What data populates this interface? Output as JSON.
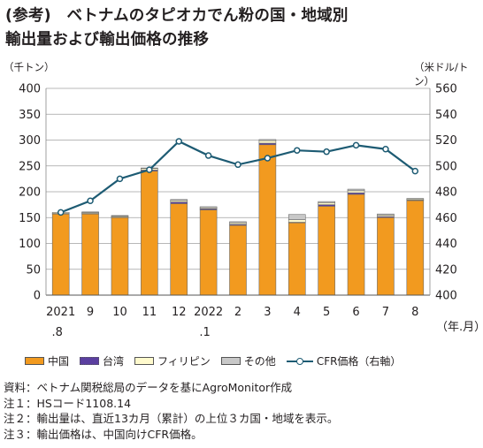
{
  "title": {
    "line1": "(参考)　ベトナムのタピオカでん粉の国・地域別",
    "line2": "輸出量および輸出価格の推移"
  },
  "units": {
    "left": "（千トン）",
    "right": "（米ドル/トン）"
  },
  "x_unit_label": "（年.月）",
  "legend": {
    "china": "中国",
    "taiwan": "台湾",
    "philippines": "フィリピン",
    "other": "その他",
    "cfr": "CFR価格（右軸）"
  },
  "colors": {
    "china": "#f29a1f",
    "taiwan": "#5b3fa0",
    "philippines": "#fffacd",
    "other": "#c8c8c8",
    "cfr_line": "#1d5b73",
    "grid": "#a0a0a0"
  },
  "notes": [
    "資料：ベトナム関税総局のデータを基にAgroMonitor作成",
    "注１：HSコード1108.14",
    "注２：輸出量は、直近13カ月（累計）の上位３カ国・地域を表示。",
    "注３：輸出価格は、中国向けCFR価格。"
  ],
  "chart_data": {
    "type": "bar",
    "stacked": true,
    "categories": [
      [
        "2021",
        ".8"
      ],
      [
        "9",
        ""
      ],
      [
        "10",
        ""
      ],
      [
        "11",
        ""
      ],
      [
        "12",
        ""
      ],
      [
        "2022",
        ".1"
      ],
      [
        "2",
        ""
      ],
      [
        "3",
        ""
      ],
      [
        "4",
        ""
      ],
      [
        "5",
        ""
      ],
      [
        "6",
        ""
      ],
      [
        "7",
        ""
      ],
      [
        "8",
        ""
      ]
    ],
    "series": [
      {
        "name": "中国",
        "key": "china",
        "values": [
          157,
          157,
          150,
          240,
          177,
          165,
          135,
          291,
          140,
          172,
          195,
          150,
          183
        ]
      },
      {
        "name": "台湾",
        "key": "taiwan",
        "values": [
          1,
          1,
          1,
          2,
          3,
          2,
          2,
          3,
          1,
          3,
          3,
          2,
          1
        ]
      },
      {
        "name": "フィリピン",
        "key": "philippines",
        "values": [
          2,
          2,
          2,
          3,
          3,
          2,
          3,
          5,
          5,
          4,
          4,
          3,
          2
        ]
      },
      {
        "name": "その他",
        "key": "other",
        "values": [
          0,
          1,
          1,
          1,
          2,
          2,
          2,
          2,
          10,
          2,
          3,
          2,
          1
        ]
      }
    ],
    "line_series": {
      "name": "CFR価格（右軸）",
      "axis": "right",
      "values": [
        464,
        473,
        490,
        497,
        519,
        508,
        501,
        506,
        512,
        511,
        516,
        513,
        496
      ]
    },
    "left_axis": {
      "ylim": [
        0,
        400
      ],
      "ticks": [
        0,
        50,
        100,
        150,
        200,
        250,
        300,
        350,
        400
      ]
    },
    "right_axis": {
      "ylim": [
        400,
        560
      ],
      "ticks": [
        400,
        420,
        440,
        460,
        480,
        500,
        520,
        540,
        560
      ]
    },
    "grid": true,
    "legend_position": "bottom"
  }
}
